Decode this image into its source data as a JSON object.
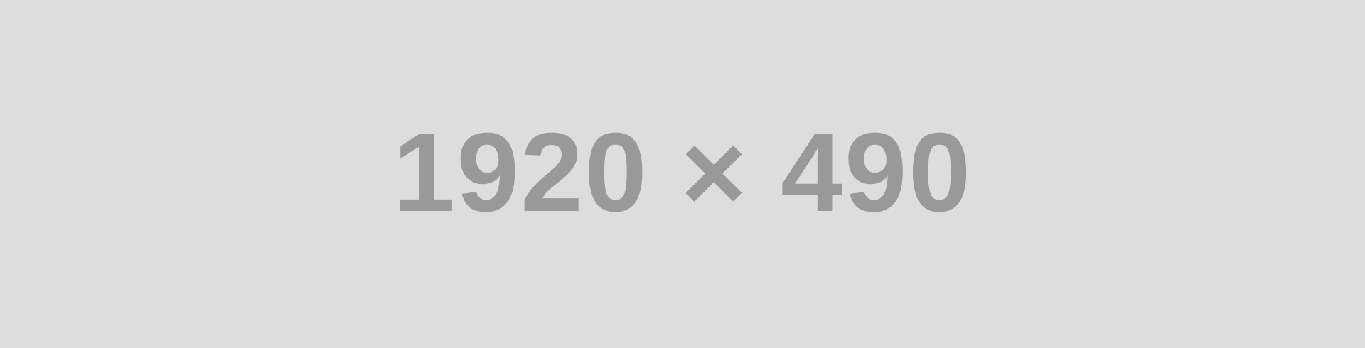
{
  "placeholder": {
    "label": "1920 × 490",
    "background_color": "#dddddd",
    "text_color": "#999999"
  }
}
